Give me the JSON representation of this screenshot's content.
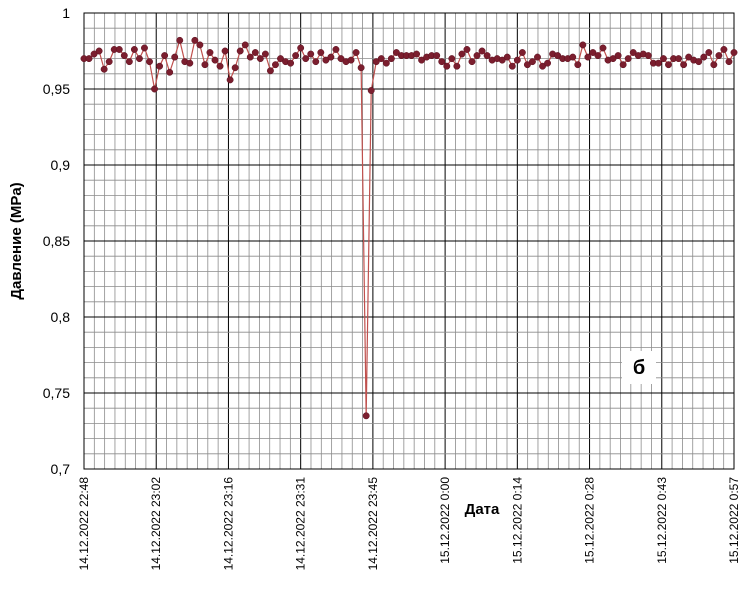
{
  "chart_data": {
    "type": "line",
    "title": "",
    "xlabel": "Дата",
    "ylabel": "Давление (MPa)",
    "ylim": [
      0.7,
      1.0
    ],
    "yticks": [
      {
        "value": 0.7,
        "label": "0,7"
      },
      {
        "value": 0.75,
        "label": "0,75"
      },
      {
        "value": 0.8,
        "label": "0,8"
      },
      {
        "value": 0.85,
        "label": "0,85"
      },
      {
        "value": 0.9,
        "label": "0,9"
      },
      {
        "value": 0.95,
        "label": "0,95"
      },
      {
        "value": 1.0,
        "label": "1"
      }
    ],
    "xticks": [
      "14.12.2022 22:48",
      "14.12.2022 23:02",
      "14.12.2022 23:16",
      "14.12.2022 23:31",
      "14.12.2022 23:45",
      "15.12.2022 0:00",
      "15.12.2022 0:14",
      "15.12.2022 0:28",
      "15.12.2022 0:43",
      "15.12.2022 0:57"
    ],
    "minor_grid_per_major": 7,
    "minor_y_step": 0.01,
    "grid": true,
    "legend": "none",
    "annotation": "б",
    "series": [
      {
        "color": "#c0504d",
        "marker_color": "#7b1e2e",
        "values": [
          0.97,
          0.97,
          0.973,
          0.975,
          0.963,
          0.968,
          0.976,
          0.976,
          0.972,
          0.968,
          0.976,
          0.97,
          0.977,
          0.968,
          0.95,
          0.965,
          0.972,
          0.961,
          0.971,
          0.982,
          0.968,
          0.967,
          0.982,
          0.979,
          0.966,
          0.974,
          0.969,
          0.965,
          0.975,
          0.956,
          0.964,
          0.975,
          0.979,
          0.971,
          0.974,
          0.97,
          0.973,
          0.962,
          0.966,
          0.97,
          0.968,
          0.967,
          0.972,
          0.977,
          0.97,
          0.973,
          0.968,
          0.974,
          0.969,
          0.971,
          0.976,
          0.97,
          0.968,
          0.969,
          0.974,
          0.964,
          0.735,
          0.949,
          0.968,
          0.97,
          0.967,
          0.97,
          0.974,
          0.972,
          0.972,
          0.972,
          0.973,
          0.969,
          0.971,
          0.972,
          0.972,
          0.968,
          0.965,
          0.97,
          0.965,
          0.973,
          0.976,
          0.968,
          0.972,
          0.975,
          0.972,
          0.969,
          0.97,
          0.969,
          0.971,
          0.965,
          0.969,
          0.974,
          0.966,
          0.968,
          0.971,
          0.965,
          0.967,
          0.973,
          0.972,
          0.97,
          0.97,
          0.971,
          0.966,
          0.979,
          0.971,
          0.974,
          0.972,
          0.977,
          0.969,
          0.97,
          0.972,
          0.966,
          0.97,
          0.974,
          0.972,
          0.973,
          0.972,
          0.967,
          0.967,
          0.97,
          0.966,
          0.97,
          0.97,
          0.966,
          0.971,
          0.969,
          0.968,
          0.971,
          0.974,
          0.966,
          0.972,
          0.976,
          0.968,
          0.974
        ]
      }
    ]
  }
}
